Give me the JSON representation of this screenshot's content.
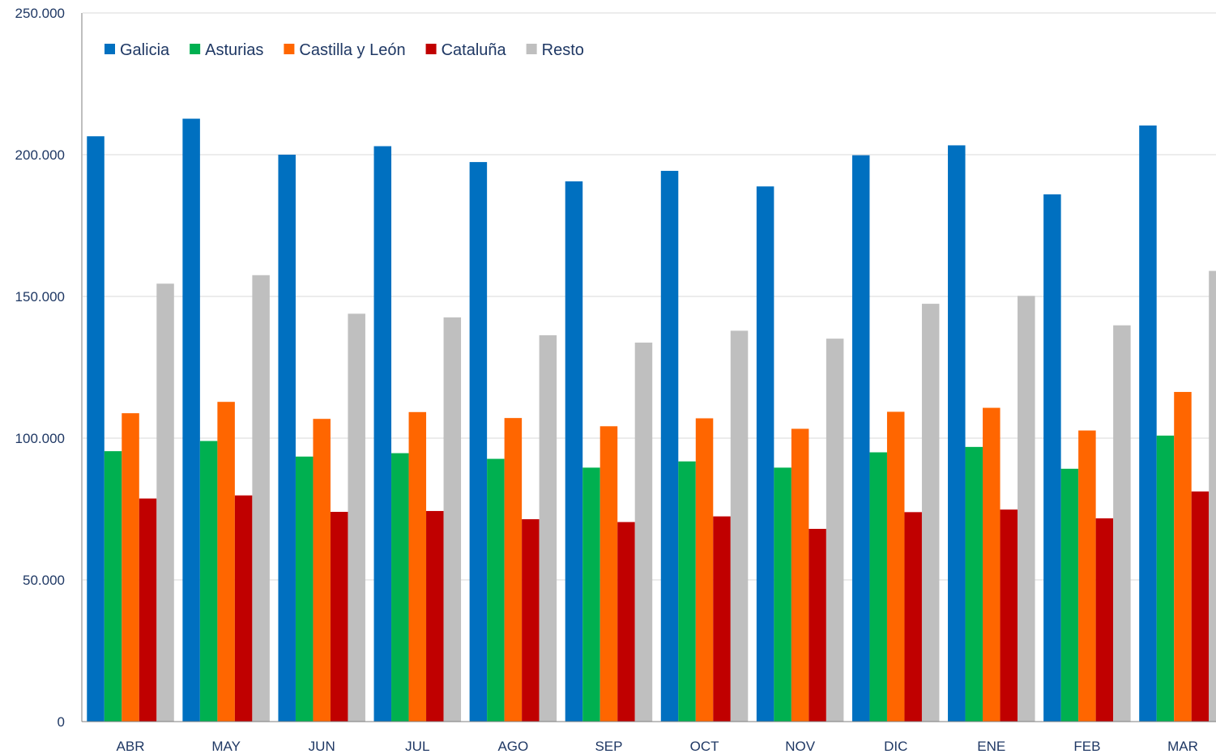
{
  "chart_data": {
    "type": "bar",
    "title": "",
    "xlabel": "",
    "ylabel": "",
    "ylim": [
      0,
      250000
    ],
    "yticks": [
      0,
      50000,
      100000,
      150000,
      200000,
      250000
    ],
    "ytick_labels": [
      "0",
      "50.000",
      "100.000",
      "150.000",
      "200.000",
      "250.000"
    ],
    "grid": "horizontal",
    "legend_position": "top-left",
    "categories": [
      "ABR",
      "MAY",
      "JUN",
      "JUL",
      "AGO",
      "SEP",
      "OCT",
      "NOV",
      "DIC",
      "ENE",
      "FEB",
      "MAR"
    ],
    "series": [
      {
        "name": "Galicia",
        "color": "#0070c0",
        "values": [
          206500,
          212700,
          200000,
          203000,
          197400,
          190600,
          194300,
          188800,
          199800,
          203300,
          186000,
          210300
        ]
      },
      {
        "name": "Asturias",
        "color": "#00b050",
        "values": [
          95400,
          99000,
          93500,
          94700,
          92700,
          89600,
          91800,
          89600,
          95000,
          96900,
          89200,
          100900
        ]
      },
      {
        "name": "Castilla y León",
        "color": "#ff6600",
        "values": [
          108800,
          112800,
          106800,
          109200,
          107100,
          104200,
          107000,
          103300,
          109300,
          110700,
          102700,
          116300
        ]
      },
      {
        "name": "Cataluña",
        "color": "#c00000",
        "values": [
          78700,
          79800,
          74000,
          74300,
          71400,
          70400,
          72400,
          68000,
          73900,
          74800,
          71700,
          81200
        ]
      },
      {
        "name": "Resto",
        "color": "#bfbfbf",
        "values": [
          154500,
          157500,
          143900,
          142600,
          136300,
          133700,
          137900,
          135100,
          147400,
          150200,
          139800,
          159000
        ]
      }
    ]
  }
}
